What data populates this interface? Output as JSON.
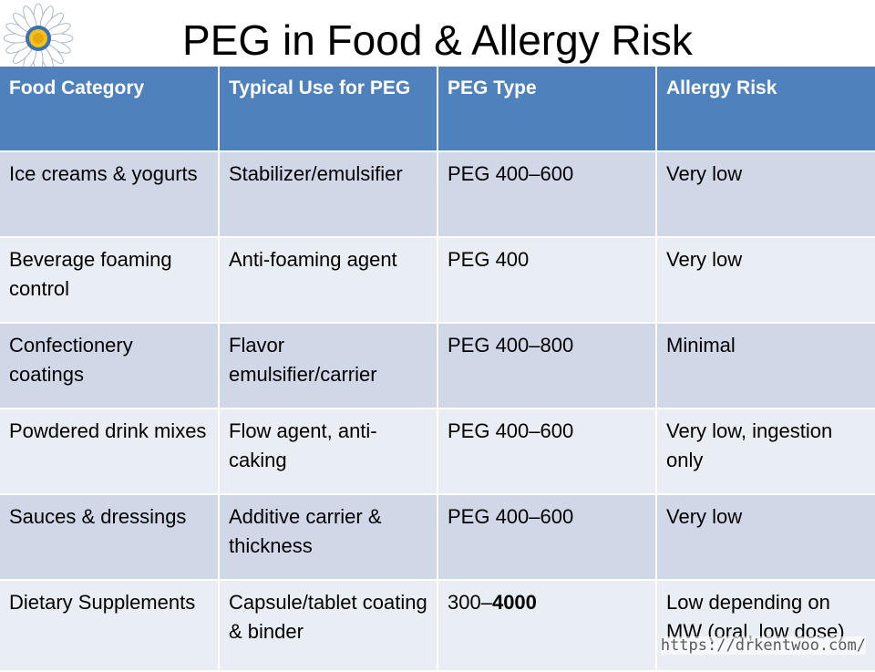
{
  "slide": {
    "title": "PEG in Food & Allergy Risk",
    "footer_url": "https://drkentwoo.com/"
  },
  "table": {
    "headers": [
      "Food Category",
      "Typical Use for PEG",
      "PEG Type",
      "Allergy Risk"
    ],
    "rows": [
      [
        "Ice creams & yogurts",
        "Stabilizer/emulsifier",
        "PEG 400–600",
        "Very low"
      ],
      [
        "Beverage foaming control",
        "Anti-foaming agent",
        "PEG 400",
        "Very low"
      ],
      [
        "Confectionery coatings",
        "Flavor emulsifier/carrier",
        "PEG 400–800",
        "Minimal"
      ],
      [
        "Powdered drink mixes",
        "Flow agent, anti-caking",
        "PEG 400–600",
        "Very low, ingestion only"
      ],
      [
        "Sauces & dressings",
        "Additive carrier & thickness",
        "PEG 400–600",
        "Very low"
      ],
      [
        "Dietary Supplements",
        "Capsule/tablet coating & binder",
        "300–4000",
        "Low depending on MW (oral, low dose)"
      ]
    ],
    "last_row_peg_type_parts": [
      "300–",
      "4000"
    ]
  },
  "colors": {
    "header_bg": "#4f81bd",
    "row_odd": "#d0d8e8",
    "row_even": "#e9edf4"
  },
  "icons": {
    "logo": "sunflower-icon"
  }
}
